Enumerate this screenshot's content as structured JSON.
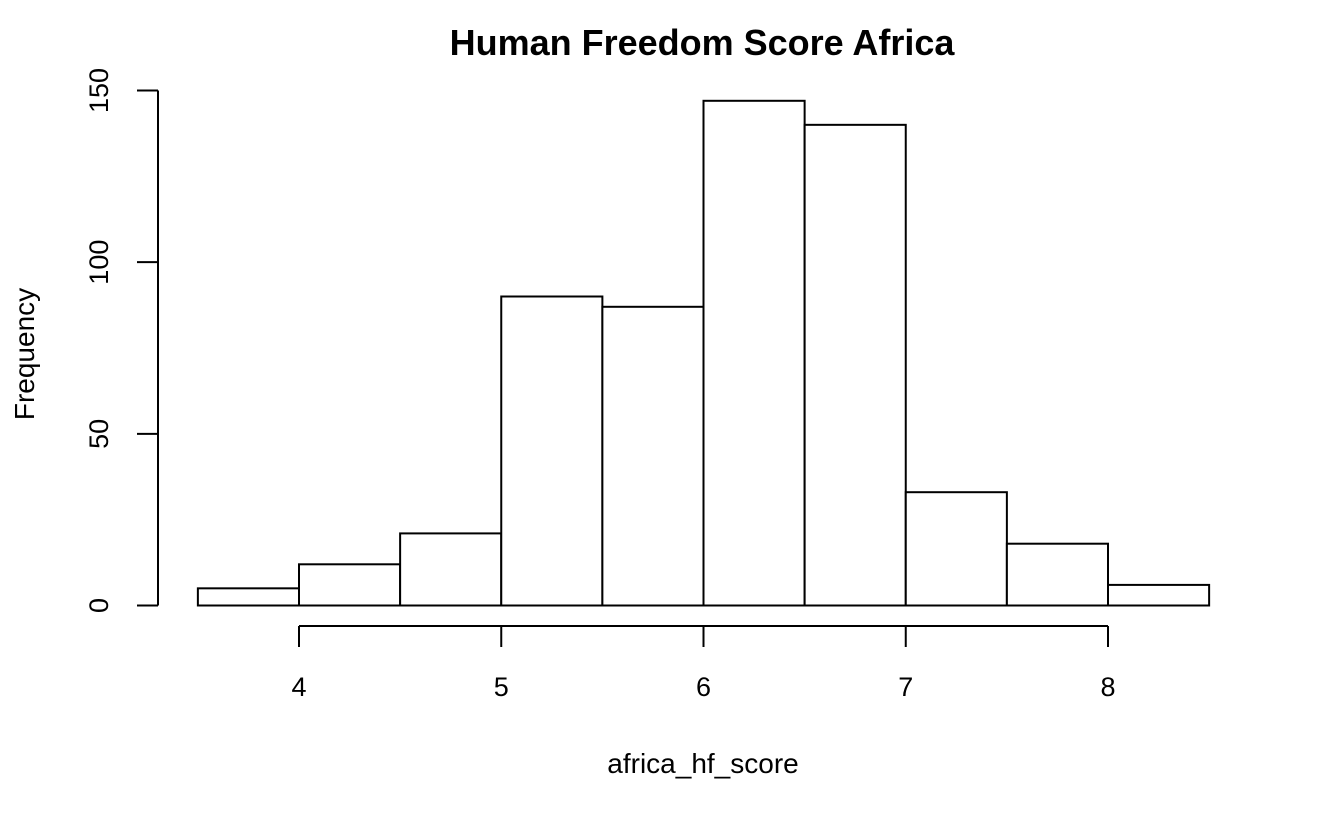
{
  "chart_data": {
    "type": "bar",
    "title": "Human Freedom Score Africa",
    "xlabel": "africa_hf_score",
    "ylabel": "Frequency",
    "bins": [
      {
        "from": 3.5,
        "to": 4.0,
        "count": 5
      },
      {
        "from": 4.0,
        "to": 4.5,
        "count": 12
      },
      {
        "from": 4.5,
        "to": 5.0,
        "count": 21
      },
      {
        "from": 5.0,
        "to": 5.5,
        "count": 90
      },
      {
        "from": 5.5,
        "to": 6.0,
        "count": 87
      },
      {
        "from": 6.0,
        "to": 6.5,
        "count": 147
      },
      {
        "from": 6.5,
        "to": 7.0,
        "count": 140
      },
      {
        "from": 7.0,
        "to": 7.5,
        "count": 33
      },
      {
        "from": 7.5,
        "to": 8.0,
        "count": 18
      },
      {
        "from": 8.0,
        "to": 8.5,
        "count": 6
      }
    ],
    "x_ticks": [
      "4",
      "5",
      "6",
      "7",
      "8"
    ],
    "y_ticks": [
      "0",
      "50",
      "100",
      "150"
    ],
    "xlim": [
      3.5,
      8.5
    ],
    "ylim": [
      0,
      150
    ],
    "grid": false,
    "bar_fill": "#ffffff",
    "bar_stroke": "#000000"
  }
}
